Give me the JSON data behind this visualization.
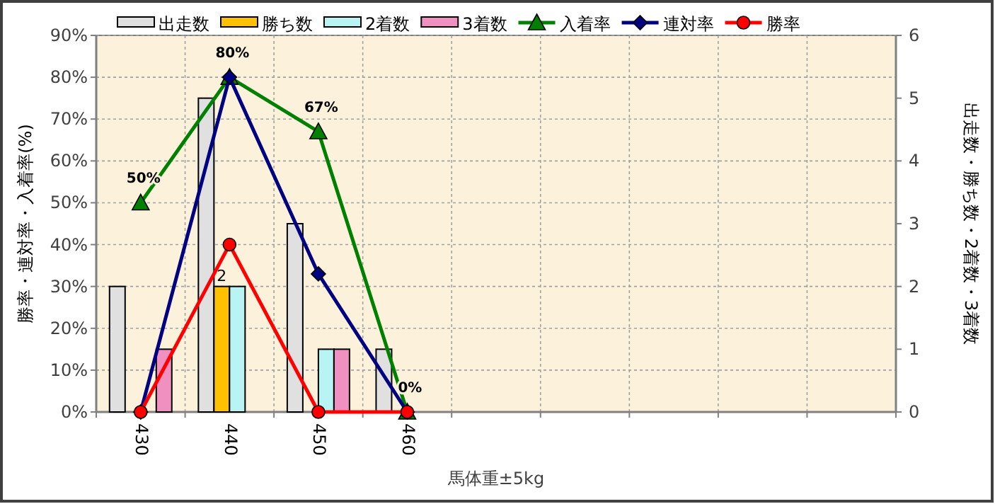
{
  "chart_data": {
    "type": "bar",
    "xlabel": "馬体重±5kg",
    "ylabel": "勝率・連対率・入着率(%)",
    "y2label": "出走数・勝ち数・2着数・3着数",
    "categories": [
      "430",
      "440",
      "450",
      "460",
      null,
      null,
      null,
      null,
      null
    ],
    "series": [
      {
        "name": "出走数",
        "axis": "y2",
        "color": "#e0e0e0",
        "values": [
          2,
          5,
          3,
          1,
          null,
          null,
          null,
          null,
          null
        ]
      },
      {
        "name": "勝ち数",
        "axis": "y2",
        "color": "#ffc000",
        "values": [
          0,
          2,
          0,
          0,
          null,
          null,
          null,
          null,
          null
        ],
        "value_labels": [
          null,
          "2",
          null,
          null,
          null,
          null,
          null,
          null,
          null
        ]
      },
      {
        "name": "2着数",
        "axis": "y2",
        "color": "#b8f4f4",
        "values": [
          0,
          2,
          1,
          0,
          null,
          null,
          null,
          null,
          null
        ]
      },
      {
        "name": "3着数",
        "axis": "y2",
        "color": "#f090c0",
        "values": [
          1,
          0,
          1,
          0,
          null,
          null,
          null,
          null,
          null
        ]
      },
      {
        "name": "入着率",
        "type": "line",
        "color": "#008000",
        "marker": "triangle",
        "values": [
          50,
          80,
          67,
          0,
          null,
          null,
          null,
          null,
          null
        ],
        "value_labels": [
          "50%",
          "80%",
          "67%",
          "0%",
          null,
          null,
          null,
          null,
          null
        ]
      },
      {
        "name": "連対率",
        "type": "line",
        "color": "#000080",
        "marker": "diamond",
        "values": [
          0,
          80,
          33,
          0,
          null,
          null,
          null,
          null,
          null
        ]
      },
      {
        "name": "勝率",
        "type": "line",
        "color": "#ff0000",
        "marker": "circle",
        "values": [
          0,
          40,
          0,
          0,
          null,
          null,
          null,
          null,
          null
        ]
      }
    ],
    "ylim": [
      0,
      90
    ],
    "yticks": [
      {
        "value": 0,
        "label": "0%"
      },
      {
        "value": 10,
        "label": "10%"
      },
      {
        "value": 20,
        "label": "20%"
      },
      {
        "value": 30,
        "label": "30%"
      },
      {
        "value": 40,
        "label": "40%"
      },
      {
        "value": 50,
        "label": "50%"
      },
      {
        "value": 60,
        "label": "60%"
      },
      {
        "value": 70,
        "label": "70%"
      },
      {
        "value": 80,
        "label": "80%"
      },
      {
        "value": 90,
        "label": "90%"
      }
    ],
    "y2lim": [
      0,
      6
    ],
    "y2ticks": [
      0,
      1,
      2,
      3,
      4,
      5,
      6
    ],
    "grid": true,
    "legend": "top"
  }
}
